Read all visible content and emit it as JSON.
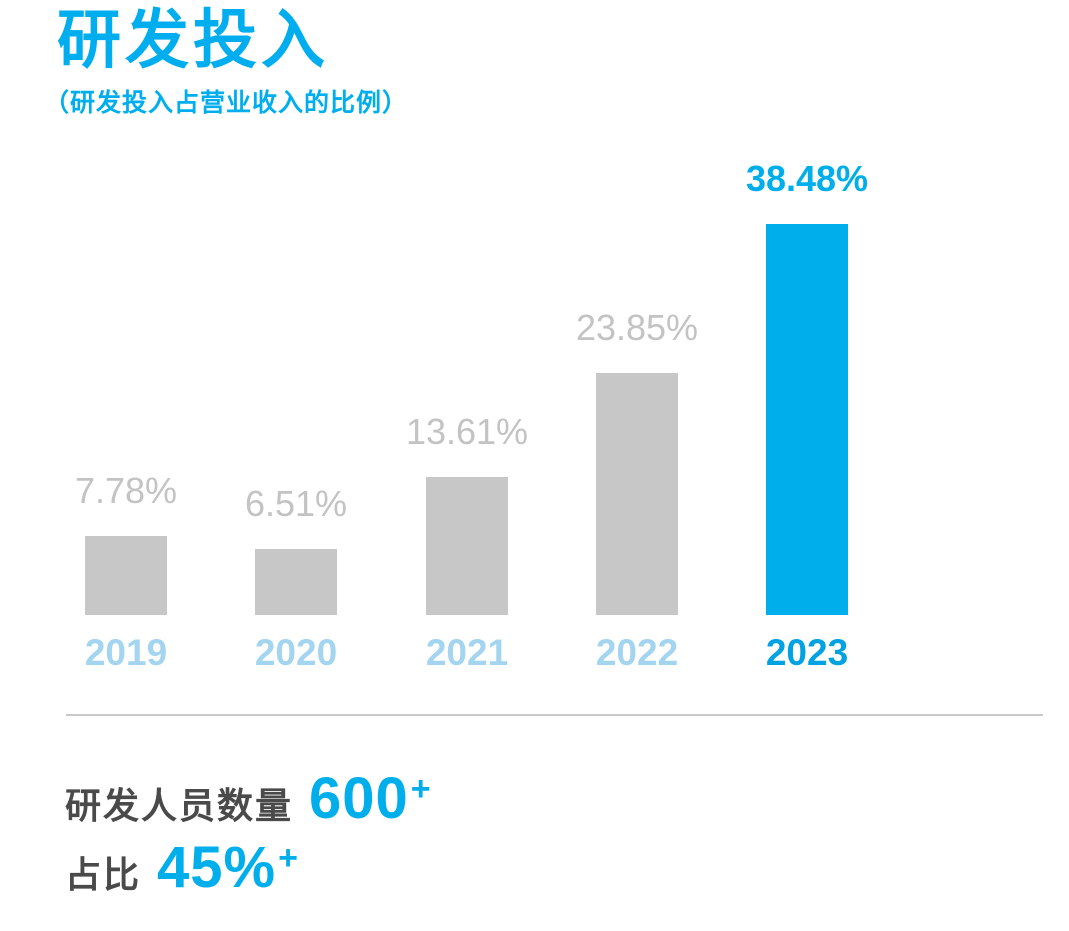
{
  "page": {
    "title": "研发投入",
    "subtitle": "（研发投入占营业收入的比例）"
  },
  "colors": {
    "accent_blue": "#00AEEC",
    "title_blue": "#00AEEF",
    "year_light_blue": "#A3D5F0",
    "year_highlight_blue": "#00A2E2",
    "bar_gray": "#C7C7C7",
    "value_label_gray": "#C3C3C3",
    "text_dark_gray": "#4A4A4A",
    "divider_gray": "#C9C9C9"
  },
  "chart_data": {
    "type": "bar",
    "title": "研发投入",
    "subtitle": "（研发投入占营业收入的比例）",
    "categories": [
      "2019",
      "2020",
      "2021",
      "2022",
      "2023"
    ],
    "values": [
      7.78,
      6.51,
      13.61,
      23.85,
      38.48
    ],
    "value_labels": [
      "7.78%",
      "6.51%",
      "13.61%",
      "23.85%",
      "38.48%"
    ],
    "unit": "%",
    "highlight_index": 4,
    "highlight_color": "#00AEEC",
    "bar_color": "#C7C7C7",
    "ylim": [
      0,
      40
    ],
    "grid": false,
    "legend": false,
    "orientation": "vertical"
  },
  "stats": {
    "line1_label": "研发人员数量",
    "line1_value": "600",
    "line1_sup": "+",
    "line2_label": "占比",
    "line2_value": "45%",
    "line2_sup": "+"
  }
}
